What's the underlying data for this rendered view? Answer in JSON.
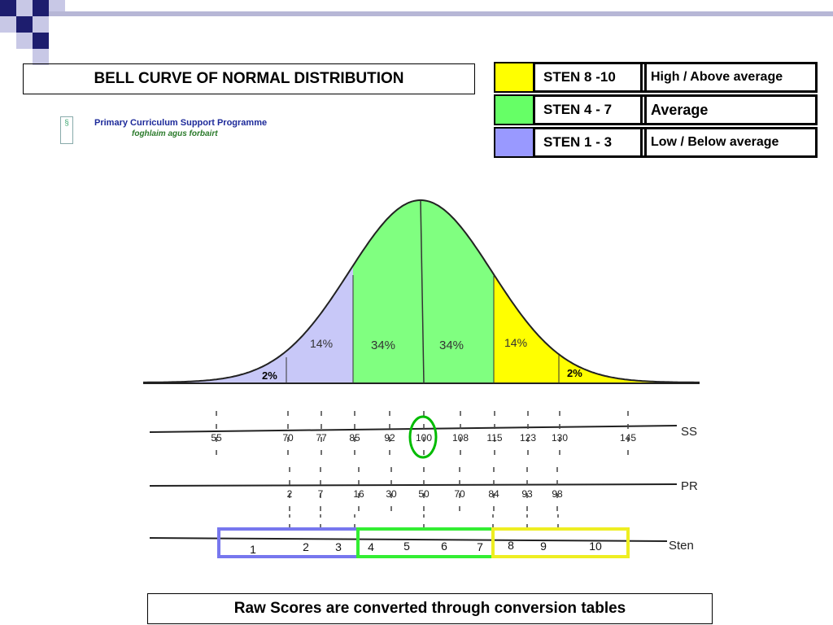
{
  "slide": {
    "title": "BELL CURVE OF NORMAL DISTRIBUTION",
    "caption": "Raw Scores are converted through conversion tables"
  },
  "logo": {
    "line1": "Primary Curriculum Support Programme",
    "line2": "foghlaim agus forbairt"
  },
  "legend": [
    {
      "color": "#ffff00",
      "label": "STEN 8 -10",
      "description": "High / Above average"
    },
    {
      "color": "#66ff66",
      "label": "STEN 4 - 7",
      "description": "Average"
    },
    {
      "color": "#9999ff",
      "label": "STEN 1 - 3",
      "description": "Low / Below average"
    }
  ],
  "colors": {
    "low": "#c8c8f8",
    "average": "#80ff80",
    "high": "#ffff00",
    "sten_low_box": "#7777ee",
    "sten_avg_box": "#33ee33",
    "sten_high_box": "#eeee22",
    "highlight_circle": "#00bb00"
  },
  "curve": {
    "percent_labels": [
      "2%",
      "14%",
      "34%",
      "34%",
      "14%",
      "2%"
    ]
  },
  "scales": {
    "ss": {
      "label": "SS",
      "ticks": [
        "55",
        "70",
        "77",
        "85",
        "92",
        "100",
        "108",
        "115",
        "123",
        "130",
        "145"
      ],
      "highlight": "100"
    },
    "pr": {
      "label": "PR",
      "ticks": [
        "2",
        "7",
        "16",
        "30",
        "50",
        "70",
        "84",
        "93",
        "98"
      ]
    },
    "sten": {
      "label": "Sten",
      "ticks": [
        "1",
        "2",
        "3",
        "4",
        "5",
        "6",
        "7",
        "8",
        "9",
        "10"
      ]
    }
  }
}
